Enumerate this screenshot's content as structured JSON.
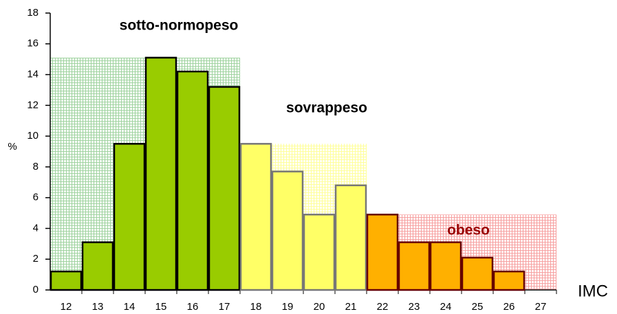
{
  "chart_data": {
    "type": "bar",
    "y_label": "%",
    "x_label": "IMC",
    "categories": [
      "12",
      "13",
      "14",
      "15",
      "16",
      "17",
      "18",
      "19",
      "20",
      "21",
      "22",
      "23",
      "24",
      "25",
      "26",
      "27"
    ],
    "series": [
      {
        "name": "sotto-normopeso",
        "color": "#99cc00",
        "band_color": "#9fd39f",
        "edge": "#000000",
        "label_color": "#000000",
        "values": [
          1.2,
          3.1,
          9.5,
          15.1,
          14.2,
          13.2,
          null,
          null,
          null,
          null,
          null,
          null,
          null,
          null,
          null,
          null
        ]
      },
      {
        "name": "sovrappeso",
        "color": "#ffff66",
        "band_color": "#ffff99",
        "edge": "#777777",
        "label_color": "#000000",
        "values": [
          null,
          null,
          null,
          null,
          null,
          null,
          9.5,
          7.7,
          4.9,
          6.8,
          null,
          null,
          null,
          null,
          null,
          null
        ]
      },
      {
        "name": "obeso",
        "color": "#ffb000",
        "band_color": "#f7a0a0",
        "edge": "#660000",
        "label_color": "#990000",
        "values": [
          null,
          null,
          null,
          null,
          null,
          null,
          null,
          null,
          null,
          null,
          4.9,
          3.1,
          3.1,
          2.1,
          1.2,
          null
        ]
      }
    ],
    "ylim": [
      0,
      18
    ],
    "yticks": [
      0,
      2,
      4,
      6,
      8,
      10,
      12,
      14,
      16,
      18
    ]
  }
}
